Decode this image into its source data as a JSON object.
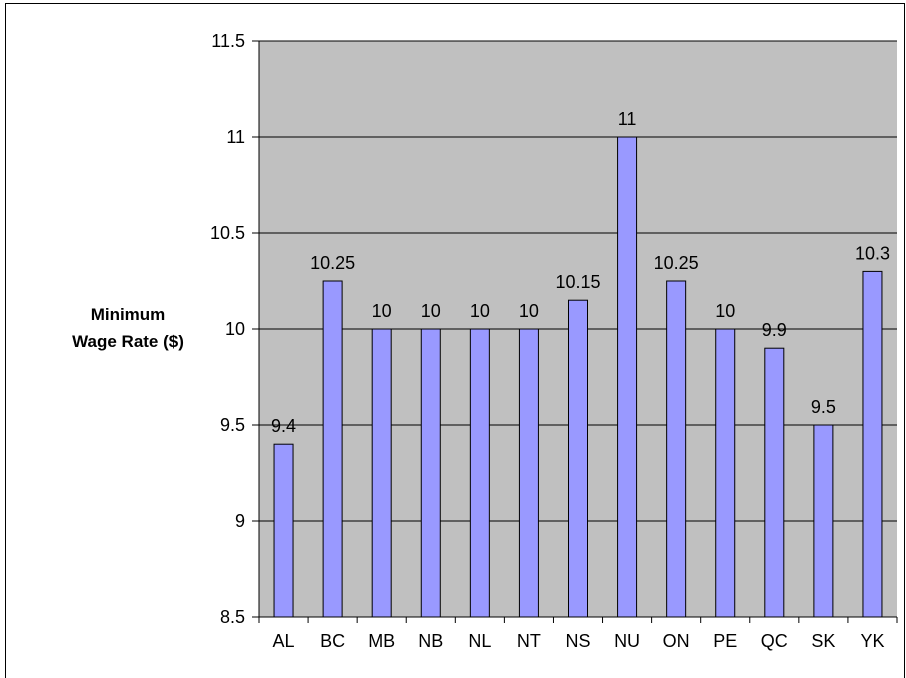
{
  "chart_data": {
    "type": "bar",
    "categories": [
      "AL",
      "BC",
      "MB",
      "NB",
      "NL",
      "NT",
      "NS",
      "NU",
      "ON",
      "PE",
      "QC",
      "SK",
      "YK"
    ],
    "values": [
      9.4,
      10.25,
      10,
      10,
      10,
      10,
      10.15,
      11,
      10.25,
      10,
      9.9,
      9.5,
      10.3
    ],
    "data_labels": [
      "9.4",
      "10.25",
      "10",
      "10",
      "10",
      "10",
      "10.15",
      "11",
      "10.25",
      "10",
      "9.9",
      "9.5",
      "10.3"
    ],
    "ylabel_lines": [
      "Minimum",
      "Wage Rate ($)"
    ],
    "ylim": [
      8.5,
      11.5
    ],
    "yticks": [
      8.5,
      9,
      9.5,
      10,
      10.5,
      11,
      11.5
    ],
    "ytick_labels": [
      "8.5",
      "9",
      "9.5",
      "10",
      "10.5",
      "11",
      "11.5"
    ],
    "grid": true,
    "colors": {
      "plot_background": "#c0c0c0",
      "bar_fill": "#9999ff",
      "bar_stroke": "#000000",
      "grid": "#000000"
    }
  }
}
